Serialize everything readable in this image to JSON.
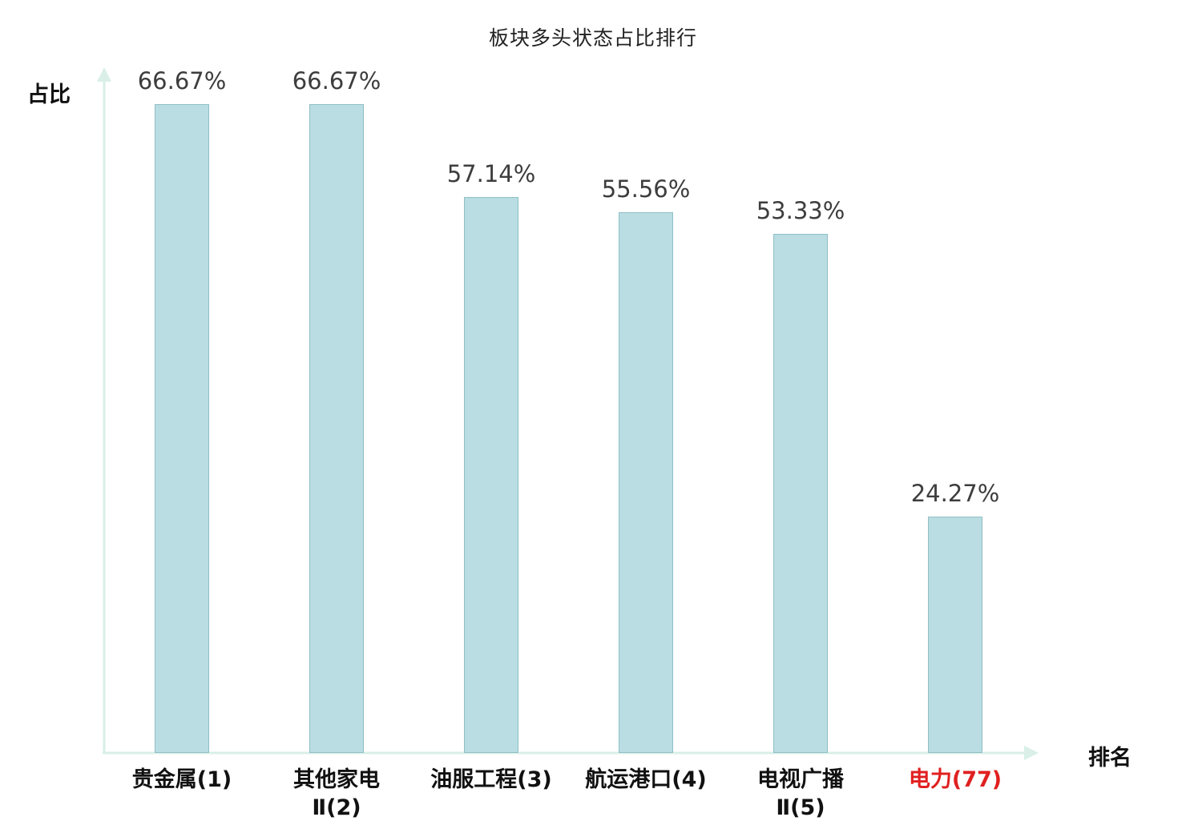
{
  "chart_data": {
    "type": "bar",
    "title": "板块多头状态占比排行",
    "xlabel": "排名",
    "ylabel": "占比",
    "categories": [
      "贵金属(1)",
      "其他家电Ⅱ(2)",
      "油服工程(3)",
      "航运港口(4)",
      "电视广播Ⅱ(5)",
      "电力(77)"
    ],
    "category_lines": [
      [
        "贵金属(1)"
      ],
      [
        "其他家电",
        "Ⅱ(2)"
      ],
      [
        "油服工程(3)"
      ],
      [
        "航运港口(4)"
      ],
      [
        "电视广播",
        "Ⅱ(5)"
      ],
      [
        "电力(77)"
      ]
    ],
    "values": [
      66.67,
      66.67,
      57.14,
      55.56,
      53.33,
      24.27
    ],
    "value_labels": [
      "66.67%",
      "66.67%",
      "57.14%",
      "55.56%",
      "53.33%",
      "24.27%"
    ],
    "highlight_index": 5,
    "ylim": [
      0,
      66.67
    ],
    "grid": false,
    "legend": null,
    "colors": {
      "bar_fill": "#b9dde2",
      "bar_border": "#5e9aa4",
      "axis": "#d9efe8",
      "value_label": "#3d3d3d",
      "category_label": "#111111",
      "highlight": "#e02020"
    }
  }
}
